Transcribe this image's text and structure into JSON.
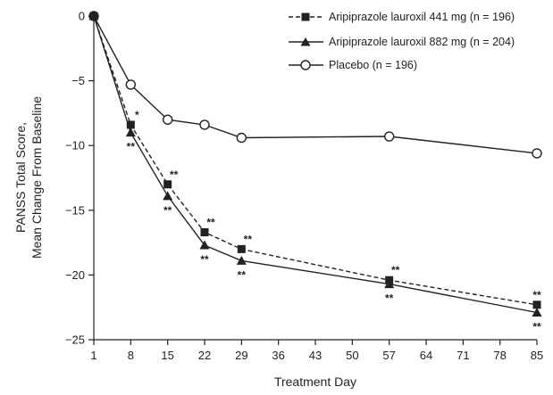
{
  "chart_data": {
    "type": "line",
    "xlabel": "Treatment Day",
    "ylabel_lines": [
      "PANSS Total Score,",
      "Mean Change From Baseline"
    ],
    "xlim": [
      1,
      85
    ],
    "ylim": [
      -25,
      0
    ],
    "x_ticks": [
      "1",
      "8",
      "15",
      "22",
      "29",
      "36",
      "43",
      "50",
      "57",
      "64",
      "71",
      "78",
      "85"
    ],
    "y_ticks": [
      "0",
      "-5",
      "-10",
      "-15",
      "-20",
      "-25"
    ],
    "grid": false,
    "legend_position": "top-right",
    "series": [
      {
        "name": "Aripiprazole lauroxil 441 mg (n = 196)",
        "marker": "square",
        "line": "dashed",
        "color": "#222222",
        "x": [
          1,
          8,
          15,
          22,
          29,
          57,
          85
        ],
        "y": [
          0,
          -8.4,
          -13.0,
          -16.7,
          -18.0,
          -20.4,
          -22.3
        ],
        "significance": [
          "",
          "*",
          "**",
          "**",
          "**",
          "**",
          "**"
        ]
      },
      {
        "name": "Aripiprazole lauroxil 882 mg (n = 204)",
        "marker": "triangle",
        "line": "solid",
        "color": "#222222",
        "x": [
          1,
          8,
          15,
          22,
          29,
          57,
          85
        ],
        "y": [
          0,
          -9.0,
          -13.9,
          -17.7,
          -18.9,
          -20.7,
          -22.9
        ],
        "significance": [
          "",
          "**",
          "**",
          "**",
          "**",
          "**",
          "**"
        ]
      },
      {
        "name": "Placebo (n = 196)",
        "marker": "circle-open",
        "line": "solid",
        "color": "#222222",
        "x": [
          1,
          8,
          15,
          22,
          29,
          57,
          85
        ],
        "y": [
          0,
          -5.3,
          -8.0,
          -8.4,
          -9.4,
          -9.3,
          -10.6
        ],
        "significance": [
          "",
          "",
          "",
          "",
          "",
          "",
          ""
        ]
      }
    ]
  }
}
